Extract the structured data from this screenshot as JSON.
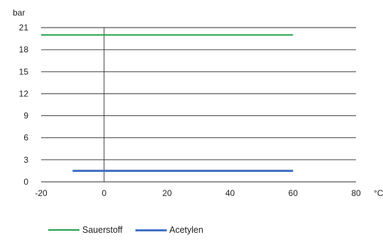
{
  "chart_data": {
    "type": "line",
    "ylabel": "bar",
    "xlabel": "°C",
    "xlim": [
      -20,
      80
    ],
    "ylim": [
      0,
      21
    ],
    "xticks": [
      -20,
      0,
      20,
      40,
      60,
      80
    ],
    "yticks": [
      0,
      3,
      6,
      9,
      12,
      15,
      18,
      21
    ],
    "grid": "horizontal",
    "zero_line": "vertical at x=0",
    "legend_position": "bottom-left",
    "series": [
      {
        "name": "Sauerstoff",
        "color": "#1fa04a",
        "x": [
          -20,
          60
        ],
        "y": [
          20,
          20
        ]
      },
      {
        "name": "Acetylen",
        "color": "#4472c4",
        "x": [
          -10,
          60
        ],
        "y": [
          1.5,
          1.5
        ]
      }
    ]
  }
}
